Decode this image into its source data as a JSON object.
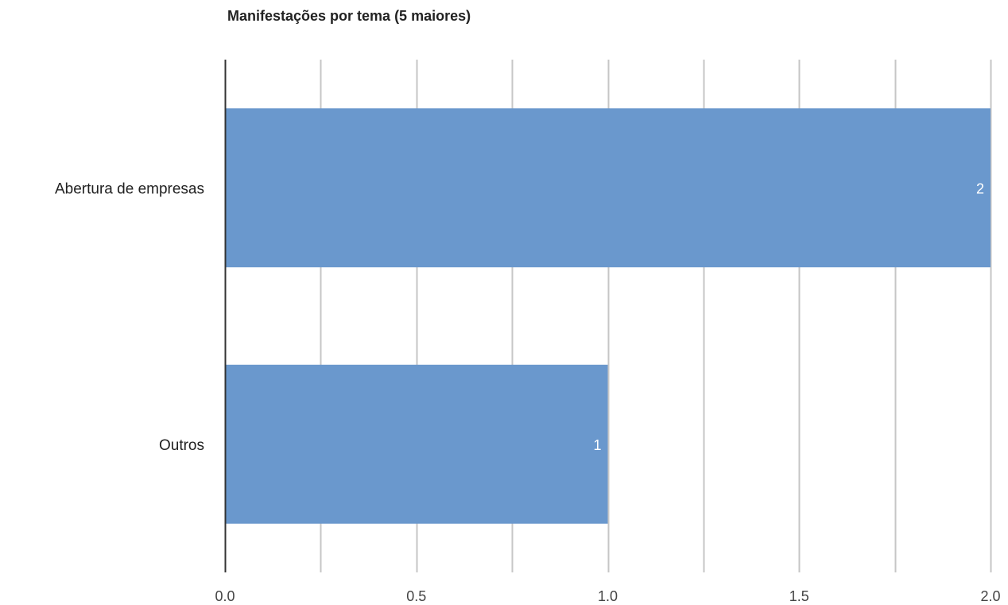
{
  "chart_data": {
    "type": "bar",
    "orientation": "horizontal",
    "title": "Manifestações por tema (5 maiores)",
    "categories": [
      "Abertura de empresas",
      "Outros"
    ],
    "values": [
      2,
      1
    ],
    "data_labels": [
      "2",
      "1"
    ],
    "xlabel": "",
    "ylabel": "",
    "xlim": [
      0,
      2
    ],
    "x_ticks": [
      0,
      0.5,
      1,
      1.5,
      2
    ],
    "x_tick_labels": [
      "0.0",
      "0.5",
      "1.0",
      "1.5",
      "2.0"
    ],
    "grid": true,
    "legend": "none",
    "bar_color": "#6a98cd",
    "grid_color": "#c6c6c6",
    "axis_color": "#333333"
  }
}
